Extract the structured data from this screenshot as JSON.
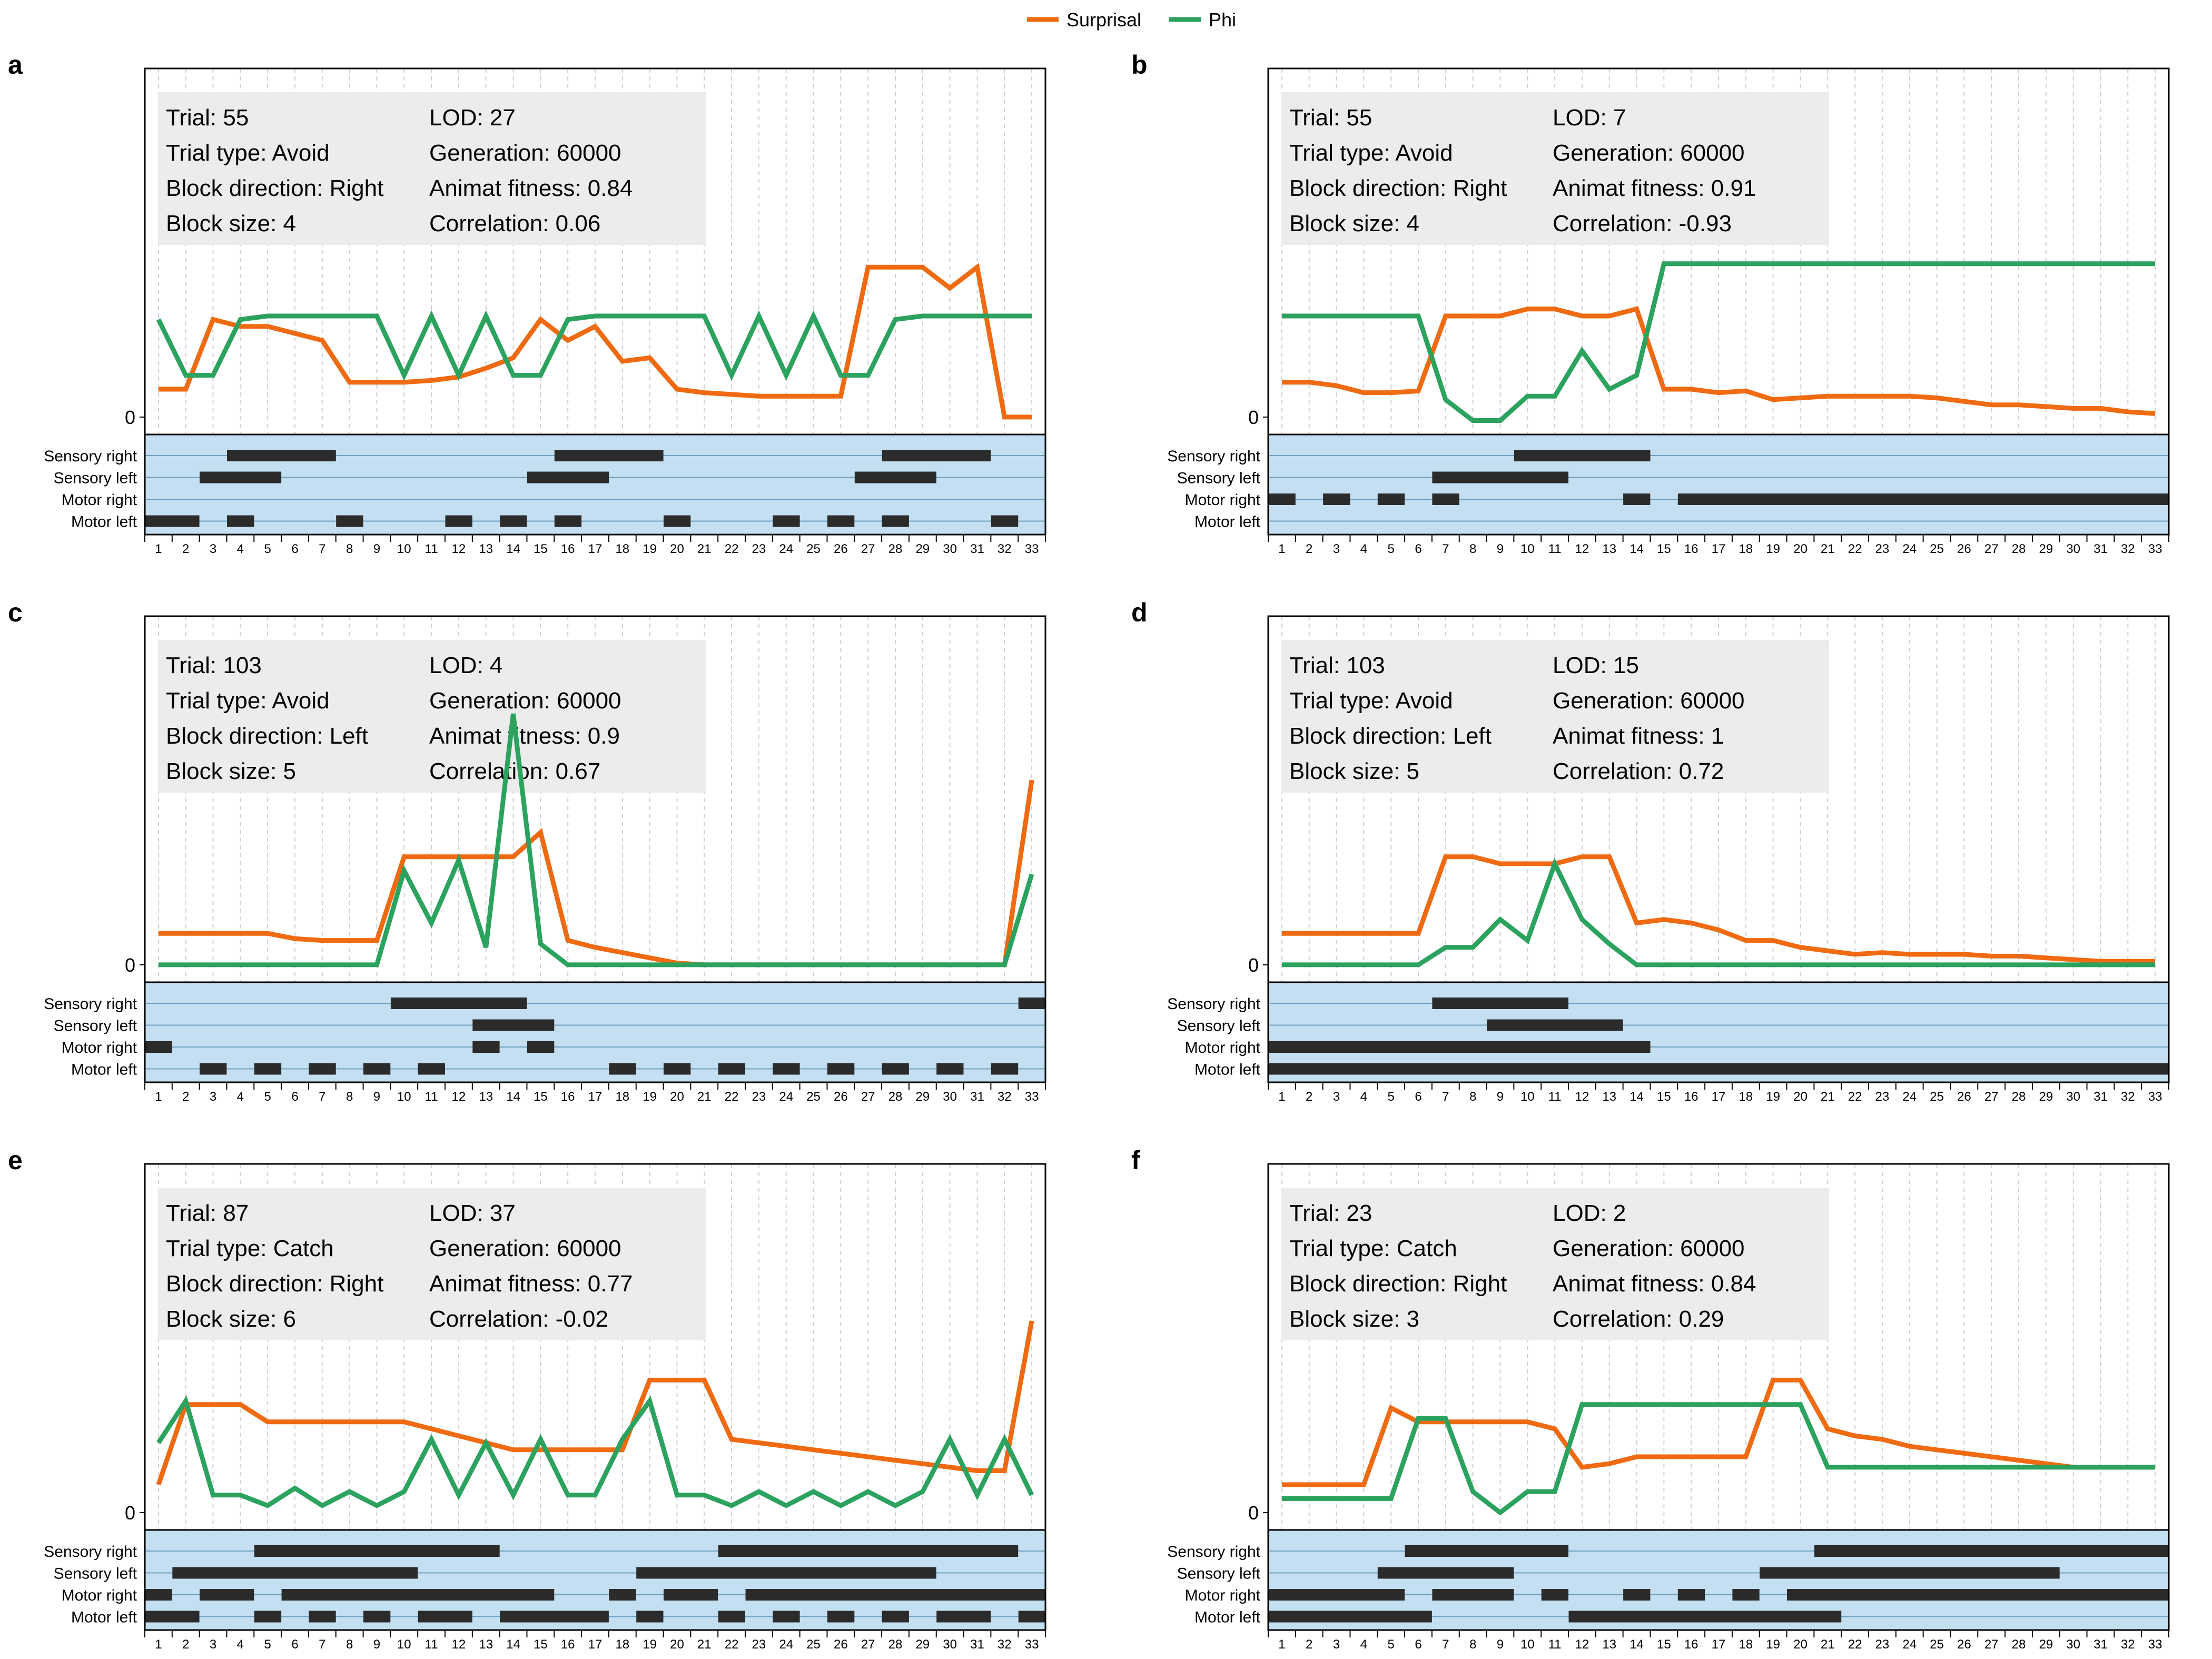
{
  "legend": [
    {
      "label": "Surprisal",
      "color": "#ef6a10"
    },
    {
      "label": "Phi",
      "color": "#2ca25f"
    }
  ],
  "colors": {
    "surprisal": "#ef6a10",
    "phi": "#2ca25f",
    "sensor_bg": "#c3dff1",
    "infobox": "#ececec",
    "bar": "#2b2b2b"
  },
  "chart_data": [
    {
      "panel": "a",
      "type": "line",
      "info": [
        "Trial: 55",
        "Trial type: Avoid",
        "Block direction: Right",
        "Block size: 4",
        "LOD: 27",
        "Generation: 60000",
        "Animat fitness: 0.84",
        "Correlation: 0.06"
      ],
      "x": [
        1,
        2,
        3,
        4,
        5,
        6,
        7,
        8,
        9,
        10,
        11,
        12,
        13,
        14,
        15,
        16,
        17,
        18,
        19,
        20,
        21,
        22,
        23,
        24,
        25,
        26,
        27,
        28,
        29,
        30,
        31,
        32,
        33
      ],
      "zero_tick": "0",
      "ylim": [
        -0.05,
        1.0
      ],
      "surprisal": [
        0.08,
        0.08,
        0.28,
        0.26,
        0.26,
        0.24,
        0.22,
        0.1,
        0.1,
        0.1,
        0.105,
        0.115,
        0.14,
        0.17,
        0.28,
        0.22,
        0.26,
        0.16,
        0.17,
        0.08,
        0.07,
        0.065,
        0.06,
        0.06,
        0.06,
        0.06,
        0.43,
        0.43,
        0.43,
        0.37,
        0.43,
        0.0,
        0.0
      ],
      "phi": [
        0.28,
        0.12,
        0.12,
        0.28,
        0.29,
        0.29,
        0.29,
        0.29,
        0.29,
        0.12,
        0.29,
        0.12,
        0.29,
        0.12,
        0.12,
        0.28,
        0.29,
        0.29,
        0.29,
        0.29,
        0.29,
        0.12,
        0.29,
        0.12,
        0.29,
        0.12,
        0.12,
        0.28,
        0.29,
        0.29,
        0.29,
        0.29,
        0.29
      ],
      "sensor_rows": [
        "Sensory right",
        "Sensory left",
        "Motor right",
        "Motor left"
      ],
      "sensors": {
        "Sensory right": [
          [
            4,
            7
          ],
          [
            16,
            19
          ],
          [
            28,
            31
          ]
        ],
        "Sensory left": [
          [
            3,
            5
          ],
          [
            15,
            17
          ],
          [
            27,
            29
          ]
        ],
        "Motor right": [],
        "Motor left": [
          [
            1,
            2
          ],
          [
            4,
            4
          ],
          [
            8,
            8
          ],
          [
            12,
            12
          ],
          [
            14,
            14
          ],
          [
            16,
            16
          ],
          [
            20,
            20
          ],
          [
            24,
            24
          ],
          [
            26,
            26
          ],
          [
            28,
            28
          ],
          [
            32,
            32
          ]
        ]
      }
    },
    {
      "panel": "b",
      "type": "line",
      "info": [
        "Trial: 55",
        "Trial type: Avoid",
        "Block direction: Right",
        "Block size: 4",
        "LOD: 7",
        "Generation: 60000",
        "Animat fitness: 0.91",
        "Correlation: -0.93"
      ],
      "x": [
        1,
        2,
        3,
        4,
        5,
        6,
        7,
        8,
        9,
        10,
        11,
        12,
        13,
        14,
        15,
        16,
        17,
        18,
        19,
        20,
        21,
        22,
        23,
        24,
        25,
        26,
        27,
        28,
        29,
        30,
        31,
        32,
        33
      ],
      "zero_tick": "0",
      "ylim": [
        -0.05,
        1.0
      ],
      "surprisal": [
        0.1,
        0.1,
        0.09,
        0.07,
        0.07,
        0.075,
        0.29,
        0.29,
        0.29,
        0.31,
        0.31,
        0.29,
        0.29,
        0.31,
        0.08,
        0.08,
        0.07,
        0.075,
        0.05,
        0.055,
        0.06,
        0.06,
        0.06,
        0.06,
        0.055,
        0.045,
        0.035,
        0.035,
        0.03,
        0.025,
        0.025,
        0.015,
        0.01
      ],
      "phi": [
        0.29,
        0.29,
        0.29,
        0.29,
        0.29,
        0.29,
        0.05,
        -0.01,
        -0.01,
        0.06,
        0.06,
        0.19,
        0.08,
        0.12,
        0.44,
        0.44,
        0.44,
        0.44,
        0.44,
        0.44,
        0.44,
        0.44,
        0.44,
        0.44,
        0.44,
        0.44,
        0.44,
        0.44,
        0.44,
        0.44,
        0.44,
        0.44,
        0.44
      ],
      "sensor_rows": [
        "Sensory right",
        "Sensory left",
        "Motor right",
        "Motor left"
      ],
      "sensors": {
        "Sensory right": [
          [
            10,
            14
          ]
        ],
        "Sensory left": [
          [
            7,
            11
          ]
        ],
        "Motor right": [
          [
            1,
            1
          ],
          [
            3,
            3
          ],
          [
            5,
            5
          ],
          [
            7,
            7
          ],
          [
            14,
            14
          ],
          [
            16,
            33
          ]
        ],
        "Motor left": []
      }
    },
    {
      "panel": "c",
      "type": "line",
      "info": [
        "Trial: 103",
        "Trial type: Avoid",
        "Block direction: Left",
        "Block size: 5",
        "LOD: 4",
        "Generation: 60000",
        "Animat fitness: 0.9",
        "Correlation: 0.67"
      ],
      "x": [
        1,
        2,
        3,
        4,
        5,
        6,
        7,
        8,
        9,
        10,
        11,
        12,
        13,
        14,
        15,
        16,
        17,
        18,
        19,
        20,
        21,
        22,
        23,
        24,
        25,
        26,
        27,
        28,
        29,
        30,
        31,
        32,
        33
      ],
      "zero_tick": "0",
      "ylim": [
        -0.05,
        1.0
      ],
      "surprisal": [
        0.09,
        0.09,
        0.09,
        0.09,
        0.09,
        0.075,
        0.07,
        0.07,
        0.07,
        0.31,
        0.31,
        0.31,
        0.31,
        0.31,
        0.38,
        0.07,
        0.05,
        0.035,
        0.02,
        0.005,
        0.0,
        0.0,
        0.0,
        0.0,
        0.0,
        0.0,
        0.0,
        0.0,
        0.0,
        0.0,
        0.0,
        0.0,
        0.53
      ],
      "phi": [
        0.0,
        0.0,
        0.0,
        0.0,
        0.0,
        0.0,
        0.0,
        0.0,
        0.0,
        0.27,
        0.12,
        0.3,
        0.05,
        0.72,
        0.06,
        0.0,
        0.0,
        0.0,
        0.0,
        0.0,
        0.0,
        0.0,
        0.0,
        0.0,
        0.0,
        0.0,
        0.0,
        0.0,
        0.0,
        0.0,
        0.0,
        0.0,
        0.26
      ],
      "sensor_rows": [
        "Sensory right",
        "Sensory left",
        "Motor right",
        "Motor left"
      ],
      "sensors": {
        "Sensory right": [
          [
            10,
            14
          ],
          [
            33,
            33
          ]
        ],
        "Sensory left": [
          [
            13,
            15
          ]
        ],
        "Motor right": [
          [
            1,
            1
          ],
          [
            13,
            13
          ],
          [
            15,
            15
          ]
        ],
        "Motor left": [
          [
            3,
            3
          ],
          [
            5,
            5
          ],
          [
            7,
            7
          ],
          [
            9,
            9
          ],
          [
            11,
            11
          ],
          [
            18,
            18
          ],
          [
            20,
            20
          ],
          [
            22,
            22
          ],
          [
            24,
            24
          ],
          [
            26,
            26
          ],
          [
            28,
            28
          ],
          [
            30,
            30
          ],
          [
            32,
            32
          ]
        ]
      }
    },
    {
      "panel": "d",
      "type": "line",
      "info": [
        "Trial: 103",
        "Trial type: Avoid",
        "Block direction: Left",
        "Block size: 5",
        "LOD: 15",
        "Generation: 60000",
        "Animat fitness: 1",
        "Correlation: 0.72"
      ],
      "x": [
        1,
        2,
        3,
        4,
        5,
        6,
        7,
        8,
        9,
        10,
        11,
        12,
        13,
        14,
        15,
        16,
        17,
        18,
        19,
        20,
        21,
        22,
        23,
        24,
        25,
        26,
        27,
        28,
        29,
        30,
        31,
        32,
        33
      ],
      "zero_tick": "0",
      "ylim": [
        -0.05,
        1.0
      ],
      "surprisal": [
        0.09,
        0.09,
        0.09,
        0.09,
        0.09,
        0.09,
        0.31,
        0.31,
        0.29,
        0.29,
        0.29,
        0.31,
        0.31,
        0.12,
        0.13,
        0.12,
        0.1,
        0.07,
        0.07,
        0.05,
        0.04,
        0.03,
        0.035,
        0.03,
        0.03,
        0.03,
        0.025,
        0.025,
        0.02,
        0.015,
        0.01,
        0.01,
        0.01
      ],
      "phi": [
        0.0,
        0.0,
        0.0,
        0.0,
        0.0,
        0.0,
        0.05,
        0.05,
        0.13,
        0.07,
        0.29,
        0.13,
        0.06,
        0.0,
        0.0,
        0.0,
        0.0,
        0.0,
        0.0,
        0.0,
        0.0,
        0.0,
        0.0,
        0.0,
        0.0,
        0.0,
        0.0,
        0.0,
        0.0,
        0.0,
        0.0,
        0.0,
        0.0
      ],
      "sensor_rows": [
        "Sensory right",
        "Sensory left",
        "Motor right",
        "Motor left"
      ],
      "sensors": {
        "Sensory right": [
          [
            7,
            11
          ]
        ],
        "Sensory left": [
          [
            9,
            13
          ]
        ],
        "Motor right": [
          [
            1,
            14
          ]
        ],
        "Motor left": [
          [
            1,
            33
          ]
        ]
      }
    },
    {
      "panel": "e",
      "type": "line",
      "info": [
        "Trial: 87",
        "Trial type: Catch",
        "Block direction: Right",
        "Block size: 6",
        "LOD: 37",
        "Generation: 60000",
        "Animat fitness: 0.77",
        "Correlation: -0.02"
      ],
      "x": [
        1,
        2,
        3,
        4,
        5,
        6,
        7,
        8,
        9,
        10,
        11,
        12,
        13,
        14,
        15,
        16,
        17,
        18,
        19,
        20,
        21,
        22,
        23,
        24,
        25,
        26,
        27,
        28,
        29,
        30,
        31,
        32,
        33
      ],
      "zero_tick": "0",
      "ylim": [
        -0.05,
        1.0
      ],
      "surprisal": [
        0.08,
        0.31,
        0.31,
        0.31,
        0.26,
        0.26,
        0.26,
        0.26,
        0.26,
        0.26,
        0.24,
        0.22,
        0.2,
        0.18,
        0.18,
        0.18,
        0.18,
        0.18,
        0.38,
        0.38,
        0.38,
        0.21,
        0.2,
        0.19,
        0.18,
        0.17,
        0.16,
        0.15,
        0.14,
        0.13,
        0.12,
        0.12,
        0.55
      ],
      "phi": [
        0.2,
        0.32,
        0.05,
        0.05,
        0.02,
        0.07,
        0.02,
        0.06,
        0.02,
        0.06,
        0.21,
        0.05,
        0.2,
        0.05,
        0.21,
        0.05,
        0.05,
        0.21,
        0.32,
        0.05,
        0.05,
        0.02,
        0.06,
        0.02,
        0.06,
        0.02,
        0.06,
        0.02,
        0.06,
        0.21,
        0.05,
        0.21,
        0.05
      ],
      "sensor_rows": [
        "Sensory right",
        "Sensory left",
        "Motor right",
        "Motor left"
      ],
      "sensors": {
        "Sensory right": [
          [
            5,
            13
          ],
          [
            22,
            32
          ]
        ],
        "Sensory left": [
          [
            2,
            10
          ],
          [
            19,
            29
          ]
        ],
        "Motor right": [
          [
            1,
            1
          ],
          [
            3,
            4
          ],
          [
            6,
            15
          ],
          [
            18,
            18
          ],
          [
            20,
            21
          ],
          [
            23,
            33
          ]
        ],
        "Motor left": [
          [
            1,
            2
          ],
          [
            5,
            5
          ],
          [
            7,
            7
          ],
          [
            9,
            9
          ],
          [
            11,
            12
          ],
          [
            14,
            17
          ],
          [
            19,
            19
          ],
          [
            22,
            22
          ],
          [
            24,
            24
          ],
          [
            26,
            26
          ],
          [
            28,
            28
          ],
          [
            30,
            31
          ],
          [
            33,
            33
          ]
        ]
      }
    },
    {
      "panel": "f",
      "type": "line",
      "info": [
        "Trial: 23",
        "Trial type: Catch",
        "Block direction: Right",
        "Block size: 3",
        "LOD: 2",
        "Generation: 60000",
        "Animat fitness: 0.84",
        "Correlation: 0.29"
      ],
      "x": [
        1,
        2,
        3,
        4,
        5,
        6,
        7,
        8,
        9,
        10,
        11,
        12,
        13,
        14,
        15,
        16,
        17,
        18,
        19,
        20,
        21,
        22,
        23,
        24,
        25,
        26,
        27,
        28,
        29,
        30,
        31,
        32,
        33
      ],
      "zero_tick": "0",
      "ylim": [
        -0.05,
        1.0
      ],
      "surprisal": [
        0.08,
        0.08,
        0.08,
        0.08,
        0.3,
        0.26,
        0.26,
        0.26,
        0.26,
        0.26,
        0.24,
        0.13,
        0.14,
        0.16,
        0.16,
        0.16,
        0.16,
        0.16,
        0.38,
        0.38,
        0.24,
        0.22,
        0.21,
        0.19,
        0.18,
        0.17,
        0.16,
        0.15,
        0.14,
        0.13,
        0.13,
        0.13,
        0.13
      ],
      "phi": [
        0.04,
        0.04,
        0.04,
        0.04,
        0.04,
        0.27,
        0.27,
        0.06,
        0.0,
        0.06,
        0.06,
        0.31,
        0.31,
        0.31,
        0.31,
        0.31,
        0.31,
        0.31,
        0.31,
        0.31,
        0.13,
        0.13,
        0.13,
        0.13,
        0.13,
        0.13,
        0.13,
        0.13,
        0.13,
        0.13,
        0.13,
        0.13,
        0.13
      ],
      "sensor_rows": [
        "Sensory right",
        "Sensory left",
        "Motor right",
        "Motor left"
      ],
      "sensors": {
        "Sensory right": [
          [
            6,
            11
          ],
          [
            21,
            33
          ]
        ],
        "Sensory left": [
          [
            5,
            9
          ],
          [
            19,
            29
          ]
        ],
        "Motor right": [
          [
            1,
            5
          ],
          [
            7,
            9
          ],
          [
            11,
            11
          ],
          [
            14,
            14
          ],
          [
            16,
            16
          ],
          [
            18,
            18
          ],
          [
            20,
            33
          ]
        ],
        "Motor left": [
          [
            1,
            6
          ],
          [
            12,
            21
          ]
        ]
      }
    }
  ]
}
